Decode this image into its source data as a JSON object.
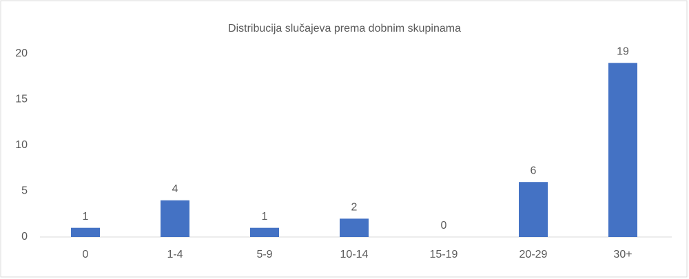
{
  "chart_data": {
    "type": "bar",
    "title": "Distribucija slučajeva prema dobnim skupinama",
    "categories": [
      "0",
      "1-4",
      "5-9",
      "10-14",
      "15-19",
      "20-29",
      "30+"
    ],
    "values": [
      1,
      4,
      1,
      2,
      0,
      6,
      19
    ],
    "color": "#4472c4",
    "ylim": [
      0,
      20
    ],
    "yticks": [
      0,
      5,
      10,
      15,
      20
    ],
    "grid": false
  }
}
